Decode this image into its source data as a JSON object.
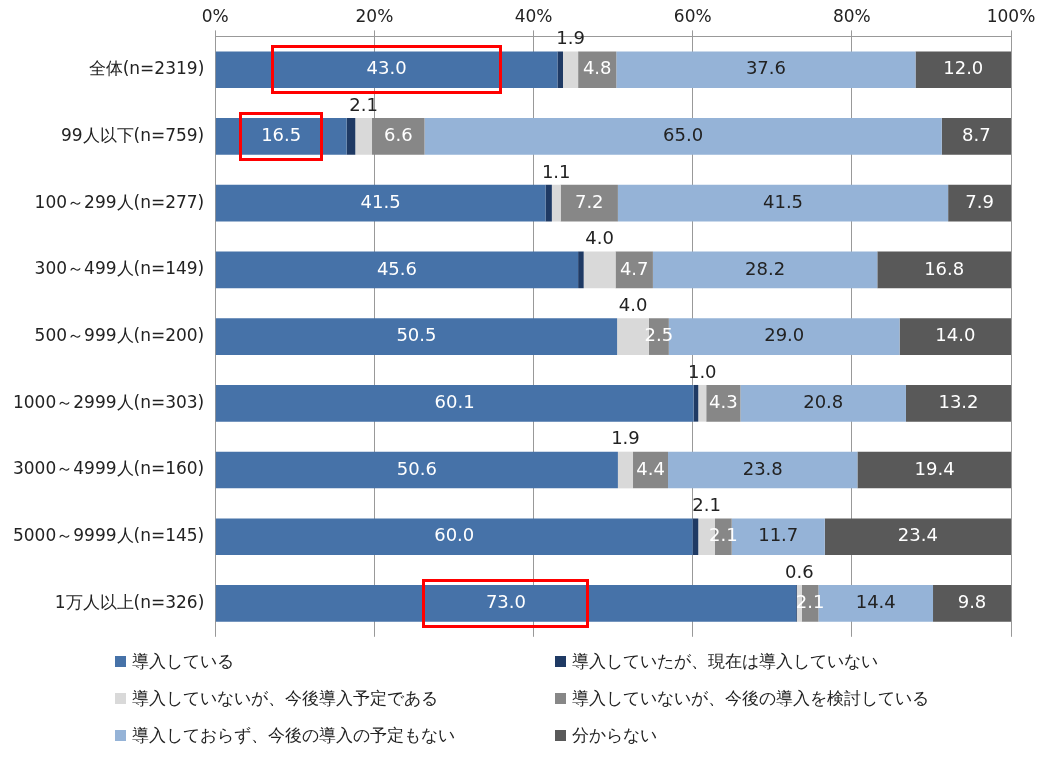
{
  "chart_data": {
    "type": "bar",
    "orientation": "horizontal",
    "stacked": true,
    "legend": "bottom",
    "grid": "x",
    "categories": [
      "全体(n=2319)",
      "99人以下(n=759)",
      "100～299人(n=277)",
      "300～499人(n=149)",
      "500～999人(n=200)",
      "1000～2999人(n=303)",
      "3000～4999人(n=160)",
      "5000～9999人(n=145)",
      "1万人以上(n=326)"
    ],
    "xlim": [
      0,
      100
    ],
    "xticks": [
      {
        "value": 0,
        "label": "0%"
      },
      {
        "value": 20,
        "label": "20%"
      },
      {
        "value": 40,
        "label": "40%"
      },
      {
        "value": 60,
        "label": "60%"
      },
      {
        "value": 80,
        "label": "80%"
      },
      {
        "value": 100,
        "label": "100%"
      }
    ],
    "series": [
      {
        "name": "導入している",
        "color": "#4672a8",
        "values": [
          43.0,
          16.5,
          41.5,
          45.6,
          50.5,
          60.1,
          50.6,
          60.0,
          73.0
        ],
        "value_labels": [
          "43.0",
          "16.5",
          "41.5",
          "45.6",
          "50.5",
          "60.1",
          "50.6",
          "60.0",
          "73.0"
        ]
      },
      {
        "name": "導入していたが、現在は導入していない",
        "color": "#1f3a64",
        "values": [
          0.7,
          1.1,
          0.8,
          0.7,
          0,
          0.6,
          0,
          0.7,
          0.1
        ]
      },
      {
        "name": "導入していないが、今後導入予定である",
        "color": "#d9d9d9",
        "values": [
          1.9,
          2.1,
          1.1,
          4.0,
          4.0,
          1.0,
          1.9,
          2.1,
          0.6
        ],
        "value_labels": [
          "1.9",
          "2.1",
          "1.1",
          "4.0",
          "4.0",
          "1.0",
          "1.9",
          "2.1",
          "0.6"
        ]
      },
      {
        "name": "導入していないが、今後の導入を検討している",
        "color": "#878787",
        "values": [
          4.8,
          6.6,
          7.2,
          4.7,
          2.5,
          4.3,
          4.4,
          2.1,
          2.1
        ],
        "value_labels": [
          "4.8",
          "6.6",
          "7.2",
          "4.7",
          "2.5",
          "4.3",
          "4.4",
          "2.1",
          "2.1"
        ]
      },
      {
        "name": "導入しておらず、今後の導入の予定もない",
        "color": "#95b3d7",
        "values": [
          37.6,
          65.0,
          41.5,
          28.2,
          29.0,
          20.8,
          23.8,
          11.7,
          14.4
        ],
        "value_labels": [
          "37.6",
          "65.0",
          "41.5",
          "28.2",
          "29.0",
          "20.8",
          "23.8",
          "11.7",
          "14.4"
        ]
      },
      {
        "name": "分からない",
        "color": "#595959",
        "values": [
          12.0,
          8.7,
          7.9,
          16.8,
          14.0,
          13.2,
          19.4,
          23.4,
          9.8
        ],
        "value_labels": [
          "12.0",
          "8.7",
          "7.9",
          "16.8",
          "14.0",
          "13.2",
          "19.4",
          "23.4",
          "9.8"
        ]
      }
    ]
  }
}
